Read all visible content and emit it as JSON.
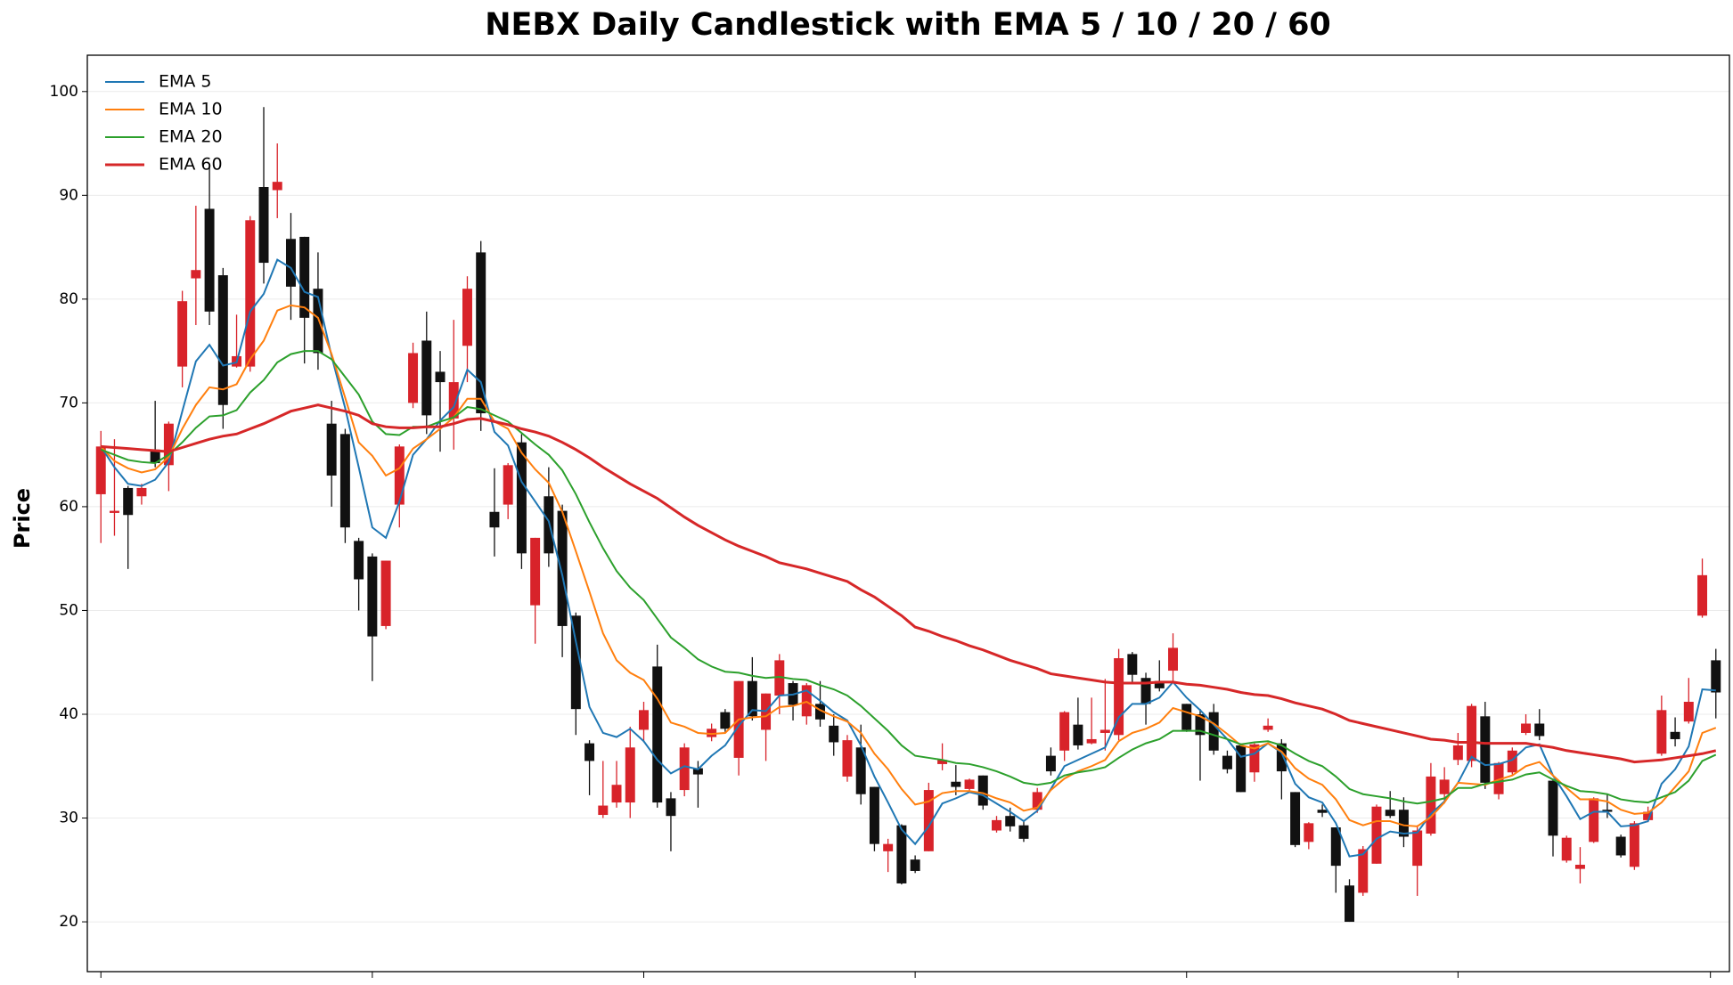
{
  "chart_data": {
    "type": "candlestick",
    "title": "NEBX Daily Candlestick with EMA 5 / 10 / 20 / 60",
    "ylabel": "Price",
    "open": [
      61.2,
      59.4,
      61.8,
      61,
      65.5,
      64,
      73.5,
      82,
      88.7,
      82.3,
      73.5,
      73.5,
      90.8,
      90.5,
      85.8,
      86,
      81,
      68,
      67,
      56.7,
      55.2,
      48.5,
      60.2,
      70,
      76,
      73,
      68.5,
      75.5,
      84.5,
      59.5,
      60.2,
      66.2,
      50.5,
      61,
      59.6,
      49.5,
      37.2,
      30.3,
      31.5,
      31.5,
      38.5,
      44.6,
      31.9,
      32.7,
      34.8,
      37.8,
      40.2,
      35.8,
      43.2,
      38.5,
      41.8,
      43,
      39.8,
      41,
      38.9,
      34,
      36.8,
      33,
      26.8,
      29.3,
      26,
      26.8,
      35.2,
      33.5,
      32.8,
      34.1,
      28.8,
      30.2,
      29.3,
      30.8,
      36,
      36.5,
      39,
      37.2,
      38.2,
      38,
      45.8,
      43.5,
      43.2,
      44.2,
      41,
      40,
      40.2,
      36,
      37,
      34.4,
      38.5,
      37.2,
      32.5,
      27.7,
      30.8,
      29.1,
      23.5,
      22.8,
      25.6,
      30.8,
      30.8,
      25.4,
      28.5,
      32.3,
      35.6,
      35.5,
      39.8,
      32.3,
      34.4,
      38.2,
      39.1,
      33.6,
      25.9,
      25.1,
      27.7,
      30.8,
      28.2,
      25.3,
      29.8,
      36.2,
      38.3,
      39.3,
      49.5,
      45.2
    ],
    "high": [
      67.3,
      66.5,
      62,
      62.2,
      70.2,
      68.2,
      80.8,
      89,
      93,
      83,
      78.5,
      88,
      98.5,
      95,
      88.3,
      86,
      84.5,
      70.2,
      67.5,
      57,
      55.5,
      54.8,
      66,
      75.8,
      78.8,
      75,
      78,
      82.2,
      85.6,
      63.7,
      64.2,
      67,
      57,
      63.8,
      60.2,
      49.8,
      37.5,
      35.5,
      35.5,
      38.8,
      41.2,
      46.7,
      32.5,
      37.2,
      35.5,
      39.1,
      40.5,
      43.2,
      45.5,
      42,
      45.8,
      43.2,
      43,
      43.2,
      40,
      38,
      39,
      33,
      28,
      29.4,
      26.4,
      33.4,
      37.2,
      35.1,
      33.8,
      34.1,
      30.2,
      31,
      29.8,
      32.9,
      36.8,
      40.3,
      41.6,
      41.6,
      43.4,
      46.3,
      46,
      44,
      45.2,
      47.8,
      41,
      40.5,
      41,
      36.5,
      37.2,
      37.2,
      39.6,
      37.6,
      32.5,
      29.6,
      31.3,
      29.1,
      24.1,
      27.3,
      31.3,
      32.6,
      32,
      29.3,
      35.3,
      34.9,
      38.2,
      41,
      41.2,
      35.4,
      36.8,
      40,
      40.5,
      33.8,
      28.3,
      27.2,
      32,
      32.3,
      28.4,
      29.7,
      31.1,
      41.8,
      39.7,
      43.5,
      55,
      46.3
    ],
    "low": [
      56.5,
      57.2,
      54,
      60.2,
      63.8,
      61.5,
      71.5,
      77.5,
      77.5,
      67.5,
      73.4,
      73,
      81.5,
      87.8,
      78,
      73.8,
      73.2,
      60,
      56.5,
      50,
      43.2,
      48.2,
      58,
      69.5,
      67,
      65.3,
      65.5,
      72,
      67.3,
      55.2,
      58.8,
      54,
      46.8,
      54.2,
      45.5,
      38,
      32.2,
      30,
      31,
      30,
      37.3,
      31,
      26.8,
      32.1,
      31,
      37.4,
      38.3,
      34.1,
      39.4,
      35.5,
      40,
      39.4,
      39,
      38.8,
      36,
      33.5,
      31.3,
      26.8,
      24.8,
      23.6,
      24.7,
      26.8,
      34.6,
      32.2,
      32.5,
      30.8,
      28.6,
      28.7,
      27.7,
      30.5,
      34.1,
      35.5,
      36.6,
      37.1,
      36.5,
      37.5,
      43,
      39,
      42.2,
      43.2,
      38.3,
      33.6,
      36.1,
      34.3,
      32.5,
      33.5,
      38.3,
      31.8,
      27.2,
      27,
      30.1,
      22.8,
      20,
      22.5,
      25.6,
      30,
      27.2,
      22.5,
      28.3,
      31.4,
      35.1,
      34.9,
      32.8,
      31.8,
      34.2,
      38,
      37.5,
      26.3,
      25.7,
      23.7,
      27.6,
      30,
      26.2,
      25,
      29.6,
      36,
      36.9,
      39.1,
      49.3,
      39.6
    ],
    "close": [
      65.8,
      59.6,
      59.2,
      61.8,
      64.2,
      68,
      79.8,
      82.8,
      78.8,
      69.8,
      74.5,
      87.6,
      83.5,
      91.3,
      81.2,
      78.2,
      74.8,
      63,
      58,
      53,
      47.5,
      54.8,
      65.8,
      74.8,
      68.8,
      72,
      72,
      81,
      69,
      58,
      64,
      55.5,
      57,
      55.5,
      48.5,
      40.5,
      35.5,
      31.2,
      33.2,
      36.8,
      40.4,
      31.5,
      30.2,
      36.8,
      34.2,
      38.6,
      38.6,
      43.2,
      39.8,
      42,
      45.2,
      40.9,
      42.8,
      39.5,
      37.3,
      37.5,
      32.3,
      27.5,
      27.5,
      23.7,
      24.9,
      32.7,
      35.6,
      33,
      33.7,
      31.2,
      29.8,
      29.2,
      28,
      32.5,
      34.5,
      40.2,
      37,
      37.6,
      38.5,
      45.4,
      43.8,
      41,
      42.5,
      46.4,
      38.5,
      38,
      36.5,
      34.7,
      32.5,
      37.1,
      38.9,
      34.5,
      27.4,
      29.5,
      30.5,
      25.4,
      20,
      27,
      31.1,
      30.2,
      28.2,
      28.8,
      34,
      33.7,
      37,
      40.8,
      33.4,
      35.3,
      36.5,
      39.1,
      37.9,
      28.3,
      28.1,
      25.5,
      31.9,
      30.6,
      26.4,
      29.5,
      30.6,
      40.4,
      37.6,
      41.2,
      53.4,
      42.1
    ],
    "up_color": "#d8232a",
    "down_color": "#111111",
    "series": [
      {
        "name": "EMA 5",
        "color": "#1f77b4",
        "values": [
          65.8,
          63.8,
          62.2,
          62,
          62.6,
          64.3,
          69.2,
          74,
          75.6,
          73.6,
          73.9,
          78.8,
          80.5,
          83.8,
          83,
          80.7,
          80.2,
          74.5,
          69.5,
          63.8,
          58,
          57,
          60.5,
          65,
          66.5,
          68.3,
          69.6,
          73.2,
          72,
          67.2,
          65.9,
          62.4,
          60.5,
          58.6,
          53.4,
          47,
          40.7,
          38.2,
          37.8,
          38.6,
          37.4,
          35.6,
          34.3,
          35,
          34.7,
          36,
          37,
          38.9,
          40.4,
          40.3,
          41.8,
          41.9,
          42.3,
          41.3,
          40.2,
          39.4,
          37,
          34,
          31.5,
          28.9,
          27.5,
          29.2,
          31.4,
          31.9,
          32.5,
          32.2,
          31.4,
          30.6,
          29.7,
          30.7,
          32.8,
          35,
          35.6,
          36.2,
          36.8,
          39.7,
          41,
          41,
          41.6,
          43.1,
          41.6,
          40.4,
          39,
          37.6,
          35.9,
          36.2,
          37.2,
          36.3,
          33.3,
          32,
          31.5,
          29.5,
          26.3,
          26.5,
          28,
          28.7,
          28.5,
          28.6,
          30.4,
          31.6,
          33.4,
          35.9,
          35.1,
          35.2,
          35.6,
          36.8,
          37.1,
          34.1,
          32.1,
          29.9,
          30.6,
          30.6,
          29.2,
          29.3,
          29.7,
          33.3,
          34.7,
          36.9,
          42.4,
          42.3
        ]
      },
      {
        "name": "EMA 10",
        "color": "#ff7f0e",
        "values": [
          65.8,
          64.4,
          63.7,
          63.3,
          63.6,
          64.8,
          67.5,
          69.8,
          71.5,
          71.3,
          71.8,
          74.2,
          76,
          78.9,
          79.4,
          79.2,
          78.2,
          74.7,
          70.5,
          66.2,
          64.9,
          63,
          63.7,
          65.6,
          66.5,
          67.5,
          68.6,
          70.4,
          70.4,
          68.2,
          67.5,
          65.2,
          63.6,
          62.3,
          59.5,
          55.7,
          51.8,
          47.8,
          45.2,
          44,
          43.3,
          41.5,
          39.2,
          38.8,
          38.2,
          38.1,
          38.2,
          39.5,
          39.7,
          39.8,
          40.7,
          40.8,
          41.2,
          40.4,
          39.8,
          39.3,
          38.2,
          36.2,
          34.7,
          32.8,
          31.3,
          31.6,
          32.4,
          32.6,
          32.6,
          32.4,
          31.9,
          31.5,
          30.7,
          31,
          32.7,
          33.8,
          34.5,
          35,
          35.6,
          37.4,
          38.2,
          38.6,
          39.2,
          40.6,
          40.2,
          39.8,
          39.1,
          38.1,
          37,
          36.7,
          37.2,
          36.4,
          34.8,
          33.8,
          33.2,
          31.8,
          29.8,
          29.3,
          29.7,
          29.7,
          29.3,
          29.2,
          30.1,
          31.5,
          33.4,
          33.3,
          33.2,
          33.7,
          34.1,
          35,
          35.4,
          34.1,
          32.9,
          31.8,
          31.8,
          31.6,
          30.8,
          30.4,
          30.5,
          31.5,
          33,
          34.5,
          38.2,
          38.7
        ]
      },
      {
        "name": "EMA 20",
        "color": "#2ca02c",
        "values": [
          65.5,
          65,
          64.5,
          64.3,
          64.2,
          65,
          66.2,
          67.6,
          68.7,
          68.8,
          69.3,
          71,
          72.2,
          73.9,
          74.7,
          75,
          75,
          74.2,
          72.5,
          70.8,
          68.2,
          67,
          66.9,
          67.7,
          67.7,
          68.2,
          68.6,
          69.6,
          69.4,
          68.8,
          68.2,
          67.1,
          66,
          65,
          63.5,
          61.2,
          58.5,
          56,
          53.8,
          52.2,
          51,
          49.2,
          47.4,
          46.4,
          45.3,
          44.6,
          44.1,
          44,
          43.7,
          43.5,
          43.6,
          43.4,
          43.3,
          42.8,
          42.4,
          41.8,
          40.8,
          39.6,
          38.4,
          37,
          36,
          35.8,
          35.6,
          35.3,
          35.2,
          34.9,
          34.5,
          34,
          33.4,
          33.2,
          33.4,
          34.1,
          34.4,
          34.6,
          34.9,
          35.8,
          36.6,
          37.2,
          37.6,
          38.4,
          38.4,
          38.4,
          38,
          37.6,
          37.1,
          37.3,
          37.4,
          37,
          36.2,
          35.5,
          35,
          34,
          32.8,
          32.3,
          32.1,
          31.9,
          31.6,
          31.4,
          31.6,
          31.9,
          32.9,
          32.9,
          33.3,
          33.5,
          33.7,
          34.2,
          34.4,
          33.7,
          33.1,
          32.6,
          32.5,
          32.3,
          31.8,
          31.6,
          31.5,
          32,
          32.5,
          33.6,
          35.5,
          36.1
        ]
      },
      {
        "name": "EMA 60",
        "color": "#d62728",
        "values": [
          65.8,
          65.7,
          65.6,
          65.5,
          65.4,
          65.3,
          65.7,
          66.1,
          66.5,
          66.8,
          67,
          67.5,
          68,
          68.6,
          69.2,
          69.5,
          69.8,
          69.5,
          69.2,
          68.8,
          68,
          67.7,
          67.6,
          67.6,
          67.7,
          67.7,
          68,
          68.4,
          68.5,
          68.2,
          67.9,
          67.5,
          67.2,
          66.8,
          66.2,
          65.5,
          64.7,
          63.8,
          63,
          62.2,
          61.5,
          60.8,
          59.9,
          59,
          58.2,
          57.5,
          56.8,
          56.2,
          55.7,
          55.2,
          54.6,
          54.3,
          54,
          53.6,
          53.2,
          52.8,
          52,
          51.3,
          50.4,
          49.5,
          48.4,
          48,
          47.5,
          47.1,
          46.6,
          46.2,
          45.7,
          45.2,
          44.8,
          44.4,
          43.9,
          43.7,
          43.5,
          43.3,
          43.1,
          43,
          43,
          43,
          43.1,
          43.1,
          42.9,
          42.8,
          42.6,
          42.4,
          42.1,
          41.9,
          41.8,
          41.5,
          41.1,
          40.8,
          40.5,
          40,
          39.4,
          39.1,
          38.8,
          38.5,
          38.2,
          37.9,
          37.6,
          37.5,
          37.3,
          37.3,
          37.2,
          37.2,
          37.2,
          37.2,
          37,
          36.8,
          36.5,
          36.3,
          36.1,
          35.9,
          35.7,
          35.4,
          35.5,
          35.6,
          35.8,
          36,
          36.2,
          36.5
        ]
      }
    ],
    "legend": "upper left",
    "grid": true,
    "xlim": [
      -1,
      120
    ],
    "xticks": [
      0,
      20,
      40,
      60,
      80,
      100,
      118.6
    ],
    "ylim": [
      15.2,
      103.5
    ],
    "yticks": [
      20,
      30,
      40,
      50,
      60,
      70,
      80,
      90,
      100
    ]
  }
}
